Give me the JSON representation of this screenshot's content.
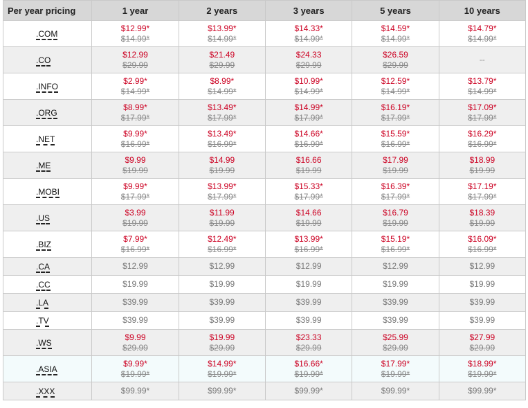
{
  "header": [
    "Per year pricing",
    "1 year",
    "2 years",
    "3 years",
    "5 years",
    "10 years"
  ],
  "rows": [
    {
      "tld": ".COM",
      "style": "red",
      "cells": [
        [
          "$12.99*",
          "$14.99*"
        ],
        [
          "$13.99*",
          "$14.99*"
        ],
        [
          "$14.33*",
          "$14.99*"
        ],
        [
          "$14.59*",
          "$14.99*"
        ],
        [
          "$14.79*",
          "$14.99*"
        ]
      ]
    },
    {
      "tld": ".CO",
      "style": "red",
      "cells": [
        [
          "$12.99",
          "$29.99"
        ],
        [
          "$21.49",
          "$29.99"
        ],
        [
          "$24.33",
          "$29.99"
        ],
        [
          "$26.59",
          "$29.99"
        ],
        [
          "--",
          ""
        ]
      ]
    },
    {
      "tld": ".INFO",
      "style": "red",
      "cells": [
        [
          "$2.99*",
          "$14.99*"
        ],
        [
          "$8.99*",
          "$14.99*"
        ],
        [
          "$10.99*",
          "$14.99*"
        ],
        [
          "$12.59*",
          "$14.99*"
        ],
        [
          "$13.79*",
          "$14.99*"
        ]
      ]
    },
    {
      "tld": ".ORG",
      "style": "red",
      "cells": [
        [
          "$8.99*",
          "$17.99*"
        ],
        [
          "$13.49*",
          "$17.99*"
        ],
        [
          "$14.99*",
          "$17.99*"
        ],
        [
          "$16.19*",
          "$17.99*"
        ],
        [
          "$17.09*",
          "$17.99*"
        ]
      ]
    },
    {
      "tld": ".NET",
      "style": "red",
      "cells": [
        [
          "$9.99*",
          "$16.99*"
        ],
        [
          "$13.49*",
          "$16.99*"
        ],
        [
          "$14.66*",
          "$16.99*"
        ],
        [
          "$15.59*",
          "$16.99*"
        ],
        [
          "$16.29*",
          "$16.99*"
        ]
      ]
    },
    {
      "tld": ".ME",
      "style": "red",
      "cells": [
        [
          "$9.99",
          "$19.99"
        ],
        [
          "$14.99",
          "$19.99"
        ],
        [
          "$16.66",
          "$19.99"
        ],
        [
          "$17.99",
          "$19.99"
        ],
        [
          "$18.99",
          "$19.99"
        ]
      ]
    },
    {
      "tld": ".MOBI",
      "style": "red",
      "cells": [
        [
          "$9.99*",
          "$17.99*"
        ],
        [
          "$13.99*",
          "$17.99*"
        ],
        [
          "$15.33*",
          "$17.99*"
        ],
        [
          "$16.39*",
          "$17.99*"
        ],
        [
          "$17.19*",
          "$17.99*"
        ]
      ]
    },
    {
      "tld": ".US",
      "style": "red",
      "cells": [
        [
          "$3.99",
          "$19.99"
        ],
        [
          "$11.99",
          "$19.99"
        ],
        [
          "$14.66",
          "$19.99"
        ],
        [
          "$16.79",
          "$19.99"
        ],
        [
          "$18.39",
          "$19.99"
        ]
      ]
    },
    {
      "tld": ".BIZ",
      "style": "red",
      "cells": [
        [
          "$7.99*",
          "$16.99*"
        ],
        [
          "$12.49*",
          "$16.99*"
        ],
        [
          "$13.99*",
          "$16.99*"
        ],
        [
          "$15.19*",
          "$16.99*"
        ],
        [
          "$16.09*",
          "$16.99*"
        ]
      ]
    },
    {
      "tld": ".CA",
      "style": "gray",
      "cells": [
        [
          "$12.99",
          ""
        ],
        [
          "$12.99",
          ""
        ],
        [
          "$12.99",
          ""
        ],
        [
          "$12.99",
          ""
        ],
        [
          "$12.99",
          ""
        ]
      ]
    },
    {
      "tld": ".CC",
      "style": "gray",
      "cells": [
        [
          "$19.99",
          ""
        ],
        [
          "$19.99",
          ""
        ],
        [
          "$19.99",
          ""
        ],
        [
          "$19.99",
          ""
        ],
        [
          "$19.99",
          ""
        ]
      ]
    },
    {
      "tld": ".LA",
      "style": "gray",
      "cells": [
        [
          "$39.99",
          ""
        ],
        [
          "$39.99",
          ""
        ],
        [
          "$39.99",
          ""
        ],
        [
          "$39.99",
          ""
        ],
        [
          "$39.99",
          ""
        ]
      ]
    },
    {
      "tld": ".TV",
      "style": "gray",
      "cells": [
        [
          "$39.99",
          ""
        ],
        [
          "$39.99",
          ""
        ],
        [
          "$39.99",
          ""
        ],
        [
          "$39.99",
          ""
        ],
        [
          "$39.99",
          ""
        ]
      ]
    },
    {
      "tld": ".WS",
      "style": "red",
      "cells": [
        [
          "$9.99",
          "$29.99"
        ],
        [
          "$19.99",
          "$29.99"
        ],
        [
          "$23.33",
          "$29.99"
        ],
        [
          "$25.99",
          "$29.99"
        ],
        [
          "$27.99",
          "$29.99"
        ]
      ]
    },
    {
      "tld": ".ASIA",
      "style": "red",
      "cells": [
        [
          "$9.99*",
          "$19.99*"
        ],
        [
          "$14.99*",
          "$19.99*"
        ],
        [
          "$16.66*",
          "$19.99*"
        ],
        [
          "$17.99*",
          "$19.99*"
        ],
        [
          "$18.99*",
          "$19.99*"
        ]
      ]
    },
    {
      "tld": ".XXX",
      "style": "gray",
      "cells": [
        [
          "$99.99*",
          ""
        ],
        [
          "$99.99*",
          ""
        ],
        [
          "$99.99*",
          ""
        ],
        [
          "$99.99*",
          ""
        ],
        [
          "$99.99*",
          ""
        ]
      ]
    }
  ]
}
